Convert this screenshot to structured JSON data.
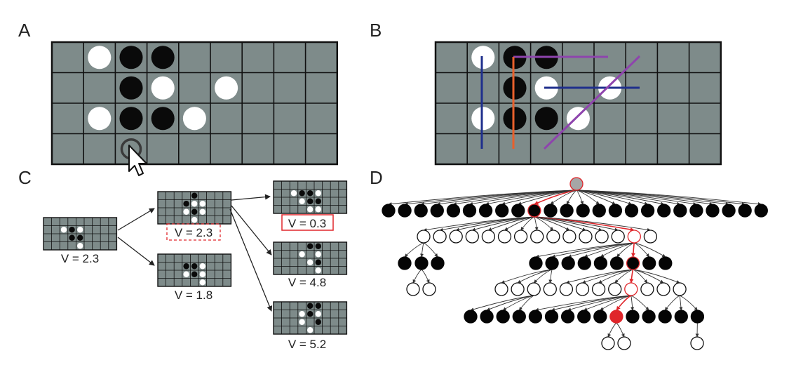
{
  "panels": {
    "A": {
      "label": "A",
      "rows": 4,
      "cols": 9,
      "stones": [
        {
          "r": 0,
          "c": 1,
          "color": "white"
        },
        {
          "r": 0,
          "c": 2,
          "color": "black"
        },
        {
          "r": 0,
          "c": 3,
          "color": "black"
        },
        {
          "r": 1,
          "c": 2,
          "color": "black"
        },
        {
          "r": 1,
          "c": 3,
          "color": "white"
        },
        {
          "r": 1,
          "c": 5,
          "color": "white"
        },
        {
          "r": 2,
          "c": 1,
          "color": "white"
        },
        {
          "r": 2,
          "c": 2,
          "color": "black"
        },
        {
          "r": 2,
          "c": 3,
          "color": "black"
        },
        {
          "r": 2,
          "c": 4,
          "color": "white"
        }
      ],
      "hover_cell": {
        "r": 3,
        "c": 2
      }
    },
    "B": {
      "label": "B",
      "rows": 4,
      "cols": 9,
      "stones": [
        {
          "r": 0,
          "c": 1,
          "color": "white"
        },
        {
          "r": 0,
          "c": 2,
          "color": "black"
        },
        {
          "r": 0,
          "c": 3,
          "color": "black"
        },
        {
          "r": 1,
          "c": 2,
          "color": "black"
        },
        {
          "r": 1,
          "c": 3,
          "color": "white"
        },
        {
          "r": 1,
          "c": 5,
          "color": "white"
        },
        {
          "r": 2,
          "c": 1,
          "color": "white"
        },
        {
          "r": 2,
          "c": 2,
          "color": "black"
        },
        {
          "r": 2,
          "c": 3,
          "color": "black"
        },
        {
          "r": 2,
          "c": 4,
          "color": "white"
        }
      ],
      "feature_colors": {
        "blue": "#1f2f8c",
        "orange": "#e8602c",
        "purple": "#8e44ad"
      }
    },
    "C": {
      "label": "C",
      "root": {
        "value_text": "V = 2.3"
      },
      "mid": [
        {
          "value_text": "V = 2.3",
          "box": "dashed"
        },
        {
          "value_text": "V = 1.8",
          "box": "none"
        }
      ],
      "right": [
        {
          "value_text": "V = 0.3",
          "box": "solid"
        },
        {
          "value_text": "V = 4.8",
          "box": "none"
        },
        {
          "value_text": "V = 5.2",
          "box": "none"
        }
      ]
    },
    "D": {
      "label": "D",
      "highlight_color": "#e0262b"
    }
  }
}
